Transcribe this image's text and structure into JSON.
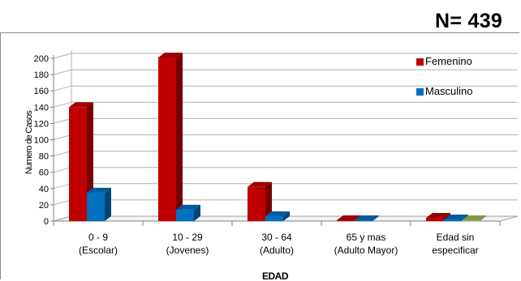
{
  "header": {
    "n_label": "N= 439"
  },
  "colors": {
    "femenino": "#c00000",
    "masculino": "#0070c0",
    "third": "#9bbb59",
    "grid": "#b0b0b0"
  },
  "chart_data": {
    "type": "bar",
    "categories": [
      [
        "0 - 9",
        "(Escolar)"
      ],
      [
        "10 - 29",
        "(Jovenes)"
      ],
      [
        "30 - 64",
        "(Adulto)"
      ],
      [
        "65 y mas",
        "(Adulto Mayor)"
      ],
      [
        "Edad sin",
        "especificar"
      ]
    ],
    "series": [
      {
        "name": "Femenino",
        "values": [
          140,
          201,
          42,
          1,
          4
        ]
      },
      {
        "name": "Masculino",
        "values": [
          35,
          14,
          6,
          0,
          2
        ]
      },
      {
        "name": "",
        "values": [
          null,
          null,
          null,
          null,
          1
        ]
      }
    ],
    "ylim": [
      0,
      200
    ],
    "yticks": [
      0,
      20,
      40,
      60,
      80,
      100,
      120,
      140,
      160,
      180,
      200
    ],
    "xlabel": "EDAD",
    "ylabel": "Numero de Casos",
    "legend_position": "top-right",
    "grid": true
  }
}
